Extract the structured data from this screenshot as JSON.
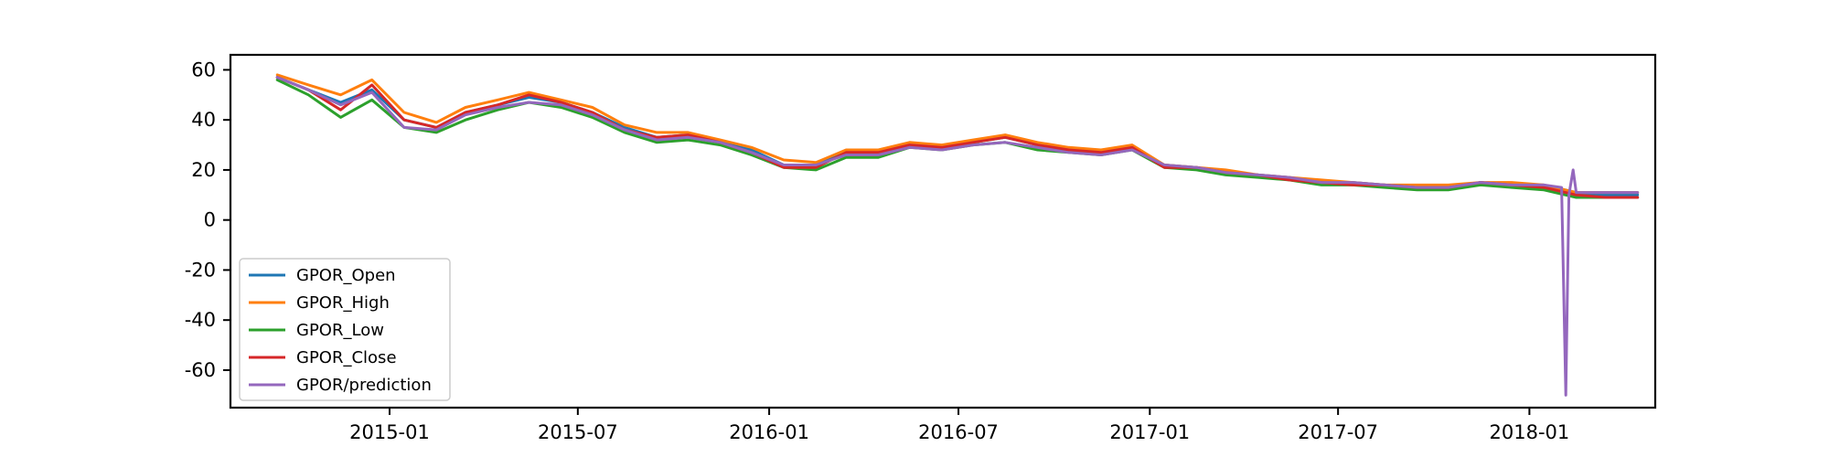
{
  "chart_data": {
    "type": "line",
    "title": "",
    "xlabel": "",
    "ylabel": "",
    "ylim": [
      -75,
      66
    ],
    "xlim": [
      "2014-08-01",
      "2018-05-02"
    ],
    "grid": false,
    "legend": {
      "placement": "lower-left"
    },
    "yticks": [
      60,
      40,
      20,
      0,
      -20,
      -40,
      -60
    ],
    "ytick_labels": [
      "60",
      "40",
      "20",
      "0",
      "-20",
      "-40",
      "-60"
    ],
    "xticks": [
      "2015-01-01",
      "2015-07-01",
      "2016-01-01",
      "2016-07-01",
      "2017-01-01",
      "2017-07-01",
      "2018-01-01"
    ],
    "xtick_labels": [
      "2015-01",
      "2015-07",
      "2016-01",
      "2016-07",
      "2017-01",
      "2017-07",
      "2018-01"
    ],
    "series": [
      {
        "name": "GPOR_Open",
        "color": "#1f77b4",
        "x": [
          "2014-09-15",
          "2014-10-15",
          "2014-11-15",
          "2014-12-15",
          "2015-01-15",
          "2015-02-15",
          "2015-03-15",
          "2015-04-15",
          "2015-05-15",
          "2015-06-15",
          "2015-07-15",
          "2015-08-15",
          "2015-09-15",
          "2015-10-15",
          "2015-11-15",
          "2015-12-15",
          "2016-01-15",
          "2016-02-15",
          "2016-03-15",
          "2016-04-15",
          "2016-05-15",
          "2016-06-15",
          "2016-07-15",
          "2016-08-15",
          "2016-09-15",
          "2016-10-15",
          "2016-11-15",
          "2016-12-15",
          "2017-01-15",
          "2017-02-15",
          "2017-03-15",
          "2017-04-15",
          "2017-05-15",
          "2017-06-15",
          "2017-07-15",
          "2017-08-15",
          "2017-09-15",
          "2017-10-15",
          "2017-11-15",
          "2017-12-15",
          "2018-01-15",
          "2018-02-15",
          "2018-03-15",
          "2018-04-15"
        ],
        "values": [
          57,
          52,
          47,
          52,
          40,
          37,
          43,
          46,
          49,
          47,
          43,
          37,
          33,
          34,
          31,
          28,
          22,
          22,
          27,
          27,
          30,
          29,
          31,
          33,
          30,
          28,
          27,
          29,
          22,
          21,
          19,
          18,
          17,
          15,
          15,
          14,
          13,
          13,
          15,
          14,
          14,
          11,
          10,
          10
        ]
      },
      {
        "name": "GPOR_High",
        "color": "#ff7f0e",
        "x": [
          "2014-09-15",
          "2014-10-15",
          "2014-11-15",
          "2014-12-15",
          "2015-01-15",
          "2015-02-15",
          "2015-03-15",
          "2015-04-15",
          "2015-05-15",
          "2015-06-15",
          "2015-07-15",
          "2015-08-15",
          "2015-09-15",
          "2015-10-15",
          "2015-11-15",
          "2015-12-15",
          "2016-01-15",
          "2016-02-15",
          "2016-03-15",
          "2016-04-15",
          "2016-05-15",
          "2016-06-15",
          "2016-07-15",
          "2016-08-15",
          "2016-09-15",
          "2016-10-15",
          "2016-11-15",
          "2016-12-15",
          "2017-01-15",
          "2017-02-15",
          "2017-03-15",
          "2017-04-15",
          "2017-05-15",
          "2017-06-15",
          "2017-07-15",
          "2017-08-15",
          "2017-09-15",
          "2017-10-15",
          "2017-11-15",
          "2017-12-15",
          "2018-01-15",
          "2018-02-15",
          "2018-03-15",
          "2018-04-15"
        ],
        "values": [
          58,
          54,
          50,
          56,
          43,
          39,
          45,
          48,
          51,
          48,
          45,
          38,
          35,
          35,
          32,
          29,
          24,
          23,
          28,
          28,
          31,
          30,
          32,
          34,
          31,
          29,
          28,
          30,
          22,
          21,
          20,
          18,
          17,
          16,
          15,
          14,
          14,
          14,
          15,
          15,
          14,
          11,
          11,
          11
        ]
      },
      {
        "name": "GPOR_Low",
        "color": "#2ca02c",
        "x": [
          "2014-09-15",
          "2014-10-15",
          "2014-11-15",
          "2014-12-15",
          "2015-01-15",
          "2015-02-15",
          "2015-03-15",
          "2015-04-15",
          "2015-05-15",
          "2015-06-15",
          "2015-07-15",
          "2015-08-15",
          "2015-09-15",
          "2015-10-15",
          "2015-11-15",
          "2015-12-15",
          "2016-01-15",
          "2016-02-15",
          "2016-03-15",
          "2016-04-15",
          "2016-05-15",
          "2016-06-15",
          "2016-07-15",
          "2016-08-15",
          "2016-09-15",
          "2016-10-15",
          "2016-11-15",
          "2016-12-15",
          "2017-01-15",
          "2017-02-15",
          "2017-03-15",
          "2017-04-15",
          "2017-05-15",
          "2017-06-15",
          "2017-07-15",
          "2017-08-15",
          "2017-09-15",
          "2017-10-15",
          "2017-11-15",
          "2017-12-15",
          "2018-01-15",
          "2018-02-15",
          "2018-03-15",
          "2018-04-15"
        ],
        "values": [
          56,
          50,
          41,
          48,
          37,
          35,
          40,
          44,
          47,
          45,
          41,
          35,
          31,
          32,
          30,
          26,
          21,
          20,
          25,
          25,
          29,
          28,
          30,
          31,
          28,
          27,
          26,
          28,
          21,
          20,
          18,
          17,
          16,
          14,
          14,
          13,
          12,
          12,
          14,
          13,
          12,
          9,
          9,
          9
        ]
      },
      {
        "name": "GPOR_Close",
        "color": "#d62728",
        "x": [
          "2014-09-15",
          "2014-10-15",
          "2014-11-15",
          "2014-12-15",
          "2015-01-15",
          "2015-02-15",
          "2015-03-15",
          "2015-04-15",
          "2015-05-15",
          "2015-06-15",
          "2015-07-15",
          "2015-08-15",
          "2015-09-15",
          "2015-10-15",
          "2015-11-15",
          "2015-12-15",
          "2016-01-15",
          "2016-02-15",
          "2016-03-15",
          "2016-04-15",
          "2016-05-15",
          "2016-06-15",
          "2016-07-15",
          "2016-08-15",
          "2016-09-15",
          "2016-10-15",
          "2016-11-15",
          "2016-12-15",
          "2017-01-15",
          "2017-02-15",
          "2017-03-15",
          "2017-04-15",
          "2017-05-15",
          "2017-06-15",
          "2017-07-15",
          "2017-08-15",
          "2017-09-15",
          "2017-10-15",
          "2017-11-15",
          "2017-12-15",
          "2018-01-15",
          "2018-02-15",
          "2018-03-15",
          "2018-04-15"
        ],
        "values": [
          57,
          52,
          44,
          54,
          40,
          37,
          43,
          46,
          50,
          47,
          43,
          36,
          33,
          34,
          31,
          27,
          21,
          21,
          27,
          27,
          30,
          29,
          31,
          33,
          30,
          28,
          27,
          29,
          21,
          21,
          19,
          18,
          16,
          15,
          14,
          14,
          13,
          13,
          15,
          14,
          13,
          10,
          9,
          9
        ]
      },
      {
        "name": "GPOR/prediction",
        "color": "#9467bd",
        "x": [
          "2014-09-15",
          "2014-10-15",
          "2014-11-15",
          "2014-12-15",
          "2015-01-15",
          "2015-02-15",
          "2015-03-15",
          "2015-04-15",
          "2015-05-15",
          "2015-06-15",
          "2015-07-15",
          "2015-08-15",
          "2015-09-15",
          "2015-10-15",
          "2015-11-15",
          "2015-12-15",
          "2016-01-15",
          "2016-02-15",
          "2016-03-15",
          "2016-04-15",
          "2016-05-15",
          "2016-06-15",
          "2016-07-15",
          "2016-08-15",
          "2016-09-15",
          "2016-10-15",
          "2016-11-15",
          "2016-12-15",
          "2017-01-15",
          "2017-02-15",
          "2017-03-15",
          "2017-04-15",
          "2017-05-15",
          "2017-06-15",
          "2017-07-15",
          "2017-08-15",
          "2017-09-15",
          "2017-10-15",
          "2017-11-15",
          "2017-12-15",
          "2018-01-15",
          "2018-02-01",
          "2018-02-05",
          "2018-02-08",
          "2018-02-12",
          "2018-02-15",
          "2018-03-15",
          "2018-04-15"
        ],
        "values": [
          57,
          52,
          46,
          51,
          37,
          36,
          42,
          45,
          47,
          46,
          42,
          36,
          32,
          33,
          31,
          27,
          22,
          22,
          26,
          26,
          29,
          28,
          30,
          31,
          29,
          27,
          26,
          28,
          22,
          21,
          19,
          18,
          17,
          15,
          15,
          14,
          13,
          13,
          15,
          14,
          14,
          13,
          -70,
          10,
          20,
          11,
          11,
          11
        ]
      }
    ]
  }
}
